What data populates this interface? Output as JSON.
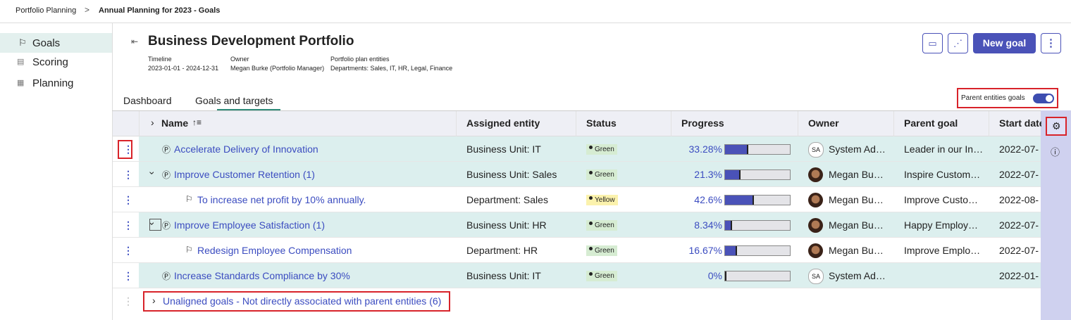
{
  "breadcrumb": [
    "Portfolio Planning",
    "Annual Planning for 2023 - Goals"
  ],
  "sidebar": [
    "Goals",
    "Scoring",
    "Planning"
  ],
  "header": {
    "title": "Business Development Portfolio",
    "meta": [
      {
        "label": "Timeline",
        "value": "2023-01-01 - 2024-12-31"
      },
      {
        "label": "Owner",
        "value": "Megan Burke (Portfolio Manager)"
      },
      {
        "label": "Portfolio plan entities",
        "value": "Departments: Sales, IT, HR, Legal, Finance"
      }
    ],
    "new_goal": "New goal"
  },
  "tabs": [
    "Dashboard",
    "Goals and targets"
  ],
  "toggle": "Parent entities goals",
  "table": {
    "columns": [
      "Name",
      "Assigned entity",
      "Status",
      "Progress",
      "Owner",
      "Parent goal",
      "Start date"
    ],
    "rows": [
      {
        "name": "Accelerate Delivery of Innovation",
        "level": 0,
        "entity": "Business Unit: IT",
        "status": "Green",
        "progress": {
          "value": 33.28,
          "label": "33.28%"
        },
        "owner": "System Ad…",
        "initials": "SA",
        "parent": "Leader in our In…",
        "start": "2022-07-"
      },
      {
        "name": "Improve Customer Retention (1)",
        "level": 0,
        "expand": true,
        "entity": "Business Unit: Sales",
        "status": "Green",
        "progress": {
          "value": 21.3,
          "label": "21.3%"
        },
        "owner": "Megan Bu…",
        "parent": "Inspire Custom…",
        "start": "2022-07-"
      },
      {
        "name": "To increase net profit by 10% annually.",
        "level": 1,
        "entity": "Department: Sales",
        "status": "Yellow",
        "progress": {
          "value": 42.6,
          "label": "42.6%"
        },
        "owner": "Megan Bu…",
        "parent": "Improve Custo…",
        "start": "2022-08-"
      },
      {
        "name": "Improve Employee Satisfaction (1)",
        "level": 0,
        "expand": true,
        "entity": "Business Unit: HR",
        "status": "Green",
        "progress": {
          "value": 8.34,
          "label": "8.34%"
        },
        "owner": "Megan Bu…",
        "parent": "Happy Employ…",
        "start": "2022-07-"
      },
      {
        "name": "Redesign Employee Compensation",
        "level": 1,
        "entity": "Department: HR",
        "status": "Green",
        "progress": {
          "value": 16.67,
          "label": "16.67%"
        },
        "owner": "Megan Bu…",
        "parent": "Improve Emplo…",
        "start": "2022-07-"
      },
      {
        "name": "Increase Standards Compliance by 30%",
        "level": 0,
        "entity": "Business Unit: IT",
        "status": "Green",
        "progress": {
          "value": 0,
          "label": "0%"
        },
        "owner": "System Ad…",
        "initials": "SA",
        "parent": "",
        "start": "2022-01-"
      }
    ],
    "unaligned": "Unaligned goals - Not directly associated with parent entities (6)"
  }
}
